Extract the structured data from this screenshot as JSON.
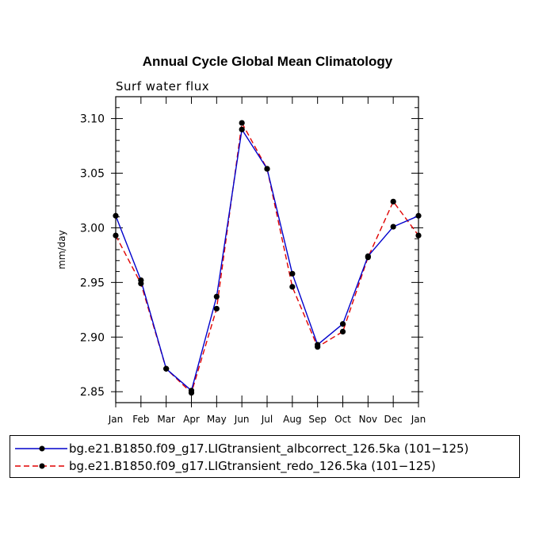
{
  "chart_data": {
    "type": "line",
    "title": "Annual Cycle Global Mean Climatology",
    "subtitle": "Surf water flux",
    "xlabel": "",
    "ylabel": "mm/day",
    "ylim": [
      2.84,
      3.12
    ],
    "yticks": [
      2.85,
      2.9,
      2.95,
      3.0,
      3.05,
      3.1
    ],
    "ytick_labels": [
      "2.85",
      "2.90",
      "2.95",
      "3.00",
      "3.05",
      "3.10"
    ],
    "categories": [
      "Jan",
      "Feb",
      "Mar",
      "Apr",
      "May",
      "Jun",
      "Jul",
      "Aug",
      "Sep",
      "Oct",
      "Nov",
      "Dec",
      "Jan"
    ],
    "series": [
      {
        "name": "bg.e21.B1850.f09_g17.LIGtransient_albcorrect_126.5ka (101−125)",
        "color": "#0000cc",
        "dash": "solid",
        "values": [
          3.011,
          2.952,
          2.871,
          2.851,
          2.937,
          3.09,
          3.054,
          2.958,
          2.893,
          2.912,
          2.974,
          3.001,
          3.011
        ]
      },
      {
        "name": "bg.e21.B1850.f09_g17.LIGtransient_redo_126.5ka (101−125)",
        "color": "#e00000",
        "dash": "dashed",
        "values": [
          2.993,
          2.949,
          2.871,
          2.849,
          2.926,
          3.096,
          3.054,
          2.946,
          2.891,
          2.905,
          2.973,
          3.024,
          2.993
        ]
      }
    ],
    "legend_position": "bottom"
  }
}
